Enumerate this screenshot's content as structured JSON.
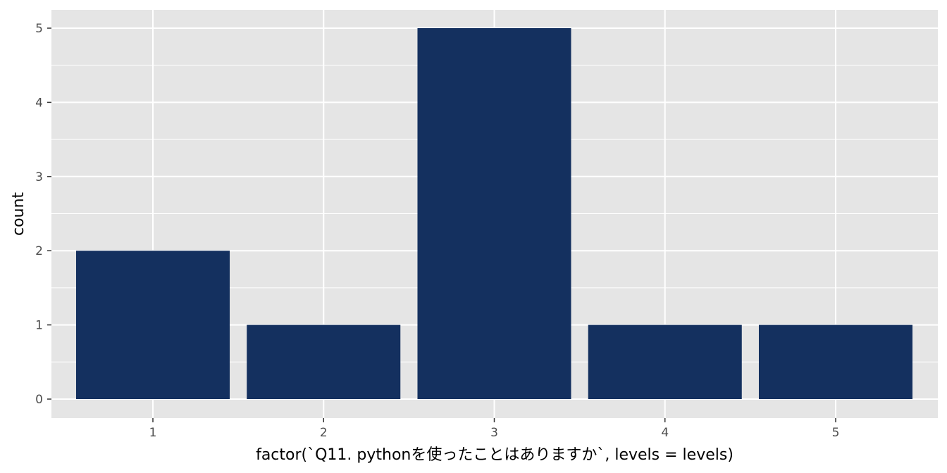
{
  "chart_data": {
    "type": "bar",
    "title": "",
    "xlabel": "factor(`Q11. pythonを使ったことはありますか`, levels = levels)",
    "ylabel": "count",
    "categories": [
      "1",
      "2",
      "3",
      "4",
      "5"
    ],
    "values": [
      2,
      1,
      5,
      1,
      1
    ],
    "ylim": [
      0,
      5
    ],
    "yticks": [
      "0",
      "1",
      "2",
      "3",
      "4",
      "5"
    ],
    "grid": true,
    "legend": "none",
    "colors": {
      "bar": "#14305f",
      "panel_background": "#e5e5e5",
      "grid_major": "#ffffff",
      "tick_text": "#4d4d4d"
    }
  }
}
